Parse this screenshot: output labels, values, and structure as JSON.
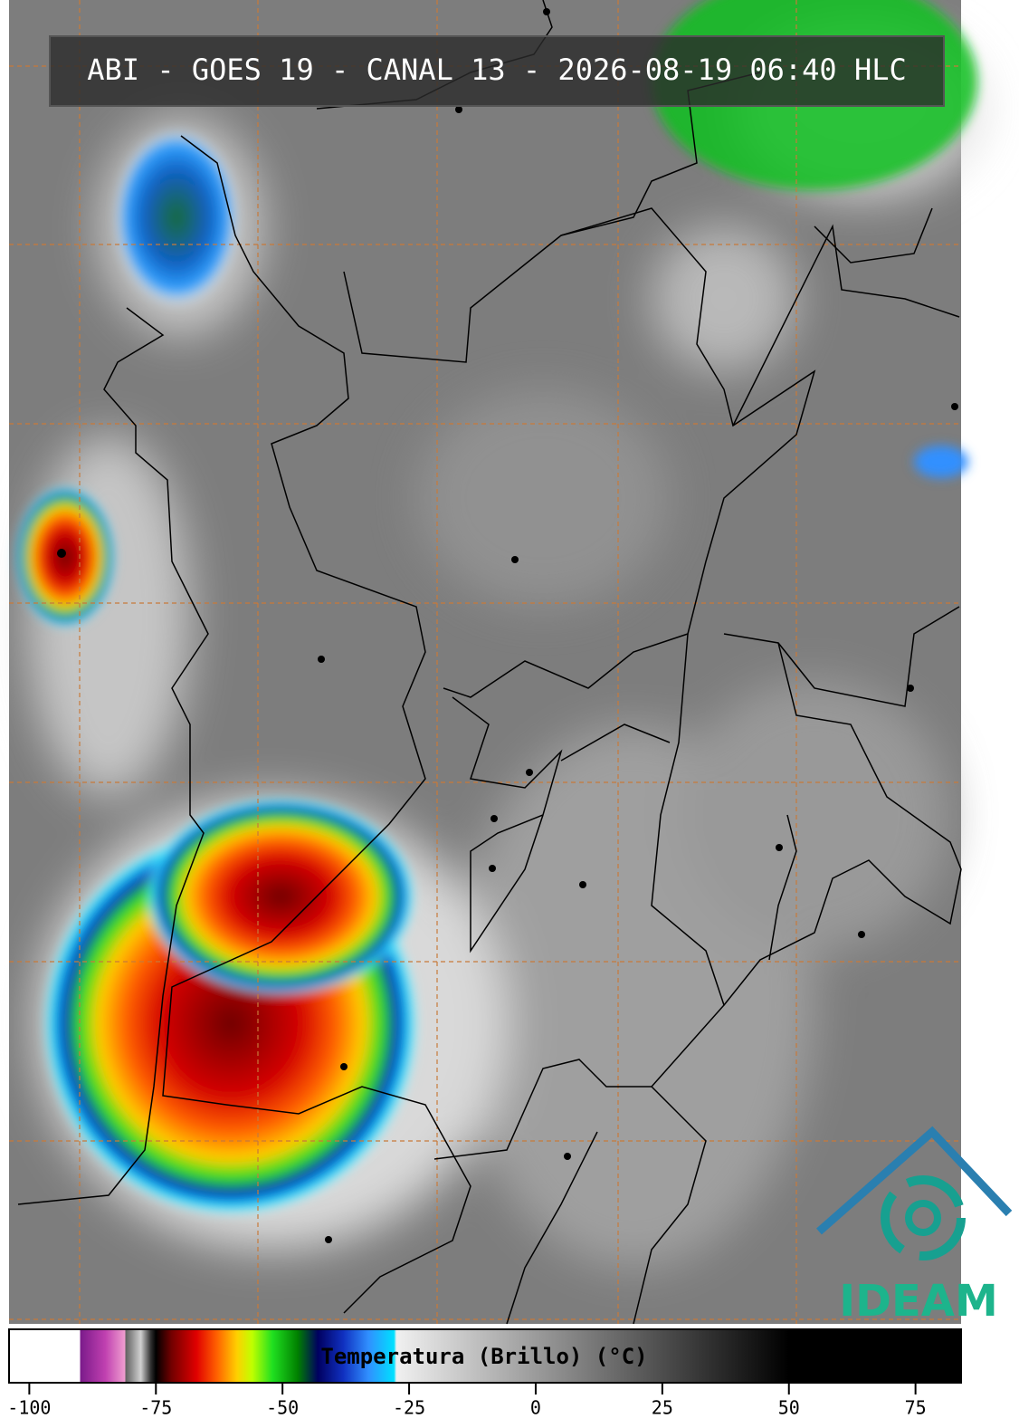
{
  "header": {
    "title": "ABI - GOES 19 - CANAL 13 - 2026-08-19 06:40 HLC"
  },
  "logo": {
    "text": "IDEAM"
  },
  "colorbar": {
    "label": "Temperatura (Brillo) (°C)",
    "range": [
      -104,
      84
    ],
    "ticks": [
      -100,
      -75,
      -50,
      -25,
      0,
      25,
      50,
      75
    ],
    "stops": [
      {
        "value": -104,
        "color": "#ffffff"
      },
      {
        "value": -90,
        "color": "#ffffff"
      },
      {
        "value": -90,
        "color": "#7a1a8a"
      },
      {
        "value": -85,
        "color": "#c040b0"
      },
      {
        "value": -81,
        "color": "#f0a0d0"
      },
      {
        "value": -81,
        "color": "#606060"
      },
      {
        "value": -78,
        "color": "#d0d0d0"
      },
      {
        "value": -76,
        "color": "#303030"
      },
      {
        "value": -75,
        "color": "#000000"
      },
      {
        "value": -72,
        "color": "#700000"
      },
      {
        "value": -67,
        "color": "#e00000"
      },
      {
        "value": -63,
        "color": "#ff6000"
      },
      {
        "value": -59,
        "color": "#ffd000"
      },
      {
        "value": -56,
        "color": "#c0ff00"
      },
      {
        "value": -52,
        "color": "#20e020"
      },
      {
        "value": -47,
        "color": "#008000"
      },
      {
        "value": -43,
        "color": "#000060"
      },
      {
        "value": -38,
        "color": "#1030c0"
      },
      {
        "value": -33,
        "color": "#3090ff"
      },
      {
        "value": -28,
        "color": "#00e0ff"
      },
      {
        "value": -27.5,
        "color": "#f0f0f0"
      },
      {
        "value": 50,
        "color": "#000000"
      },
      {
        "value": 84,
        "color": "#000000"
      }
    ]
  }
}
